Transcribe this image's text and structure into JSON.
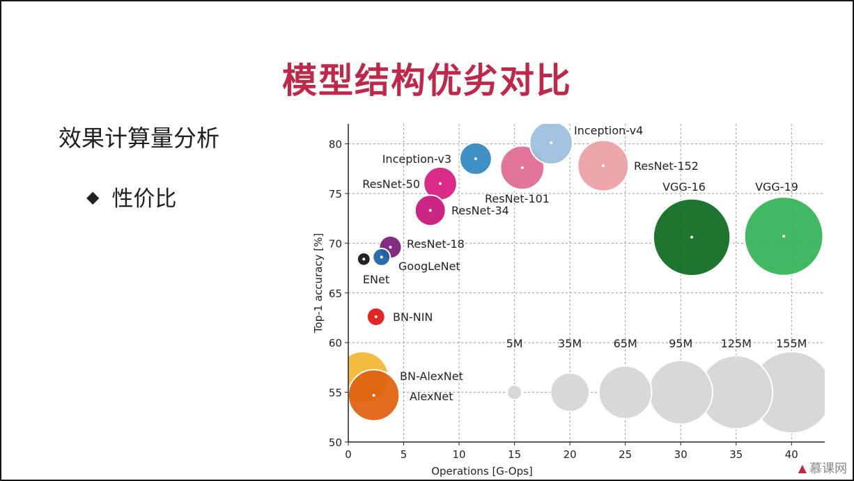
{
  "slide": {
    "title": "模型结构优劣对比",
    "subtitle": "效果计算量分析",
    "bullet": "性价比",
    "bullet_symbol": "◆",
    "watermark": "慕课网",
    "watermark_icon": "flame-icon",
    "title_color": "#c0284a"
  },
  "chart_data": {
    "type": "scatter",
    "xlabel": "Operations [G-Ops]",
    "ylabel": "Top-1 accuracy [%]",
    "xlim": [
      0,
      43
    ],
    "ylim": [
      50,
      82
    ],
    "xticks": [
      0,
      5,
      10,
      15,
      20,
      25,
      30,
      35,
      40
    ],
    "yticks": [
      50,
      55,
      60,
      65,
      70,
      75,
      80
    ],
    "grid": true,
    "points": [
      {
        "name": "AlexNet",
        "x": 2.3,
        "y": 54.7,
        "params": 61,
        "color": "#e0620f"
      },
      {
        "name": "BN-AlexNet",
        "x": 1.3,
        "y": 56.5,
        "params": 62,
        "color": "#f0b730"
      },
      {
        "name": "BN-NIN",
        "x": 2.5,
        "y": 62.6,
        "params": 7.6,
        "color": "#e01515"
      },
      {
        "name": "ENet",
        "x": 1.4,
        "y": 68.4,
        "params": 4,
        "color": "#111111"
      },
      {
        "name": "GoogLeNet",
        "x": 3.0,
        "y": 68.6,
        "params": 7,
        "color": "#1b62a6"
      },
      {
        "name": "ResNet-18",
        "x": 3.8,
        "y": 69.6,
        "params": 11.7,
        "color": "#7b1e7a"
      },
      {
        "name": "ResNet-34",
        "x": 7.4,
        "y": 73.3,
        "params": 21.8,
        "color": "#c7167a"
      },
      {
        "name": "ResNet-50",
        "x": 8.3,
        "y": 76.0,
        "params": 25.6,
        "color": "#d61c80"
      },
      {
        "name": "Inception-v3",
        "x": 11.5,
        "y": 78.5,
        "params": 23.8,
        "color": "#2e86bf"
      },
      {
        "name": "ResNet-101",
        "x": 15.7,
        "y": 77.6,
        "params": 44.5,
        "color": "#e06a94"
      },
      {
        "name": "Inception-v4",
        "x": 18.3,
        "y": 80.1,
        "params": 42.7,
        "color": "#9bbfdf"
      },
      {
        "name": "ResNet-152",
        "x": 23.0,
        "y": 77.8,
        "params": 60.2,
        "color": "#eca0a2"
      },
      {
        "name": "VGG-16",
        "x": 31.0,
        "y": 70.6,
        "params": 138,
        "color": "#0c6b1f"
      },
      {
        "name": "VGG-19",
        "x": 39.3,
        "y": 70.7,
        "params": 144,
        "color": "#34b356"
      }
    ],
    "size_legend": [
      {
        "label": "5M",
        "x": 15,
        "y": 55,
        "params": 5
      },
      {
        "label": "35M",
        "x": 20,
        "y": 55,
        "params": 35
      },
      {
        "label": "65M",
        "x": 25,
        "y": 55,
        "params": 65
      },
      {
        "label": "95M",
        "x": 30,
        "y": 55,
        "params": 95
      },
      {
        "label": "125M",
        "x": 35,
        "y": 55,
        "params": 125
      },
      {
        "label": "155M",
        "x": 40,
        "y": 55,
        "params": 155
      }
    ],
    "legend_color": "#d8d8d8"
  }
}
